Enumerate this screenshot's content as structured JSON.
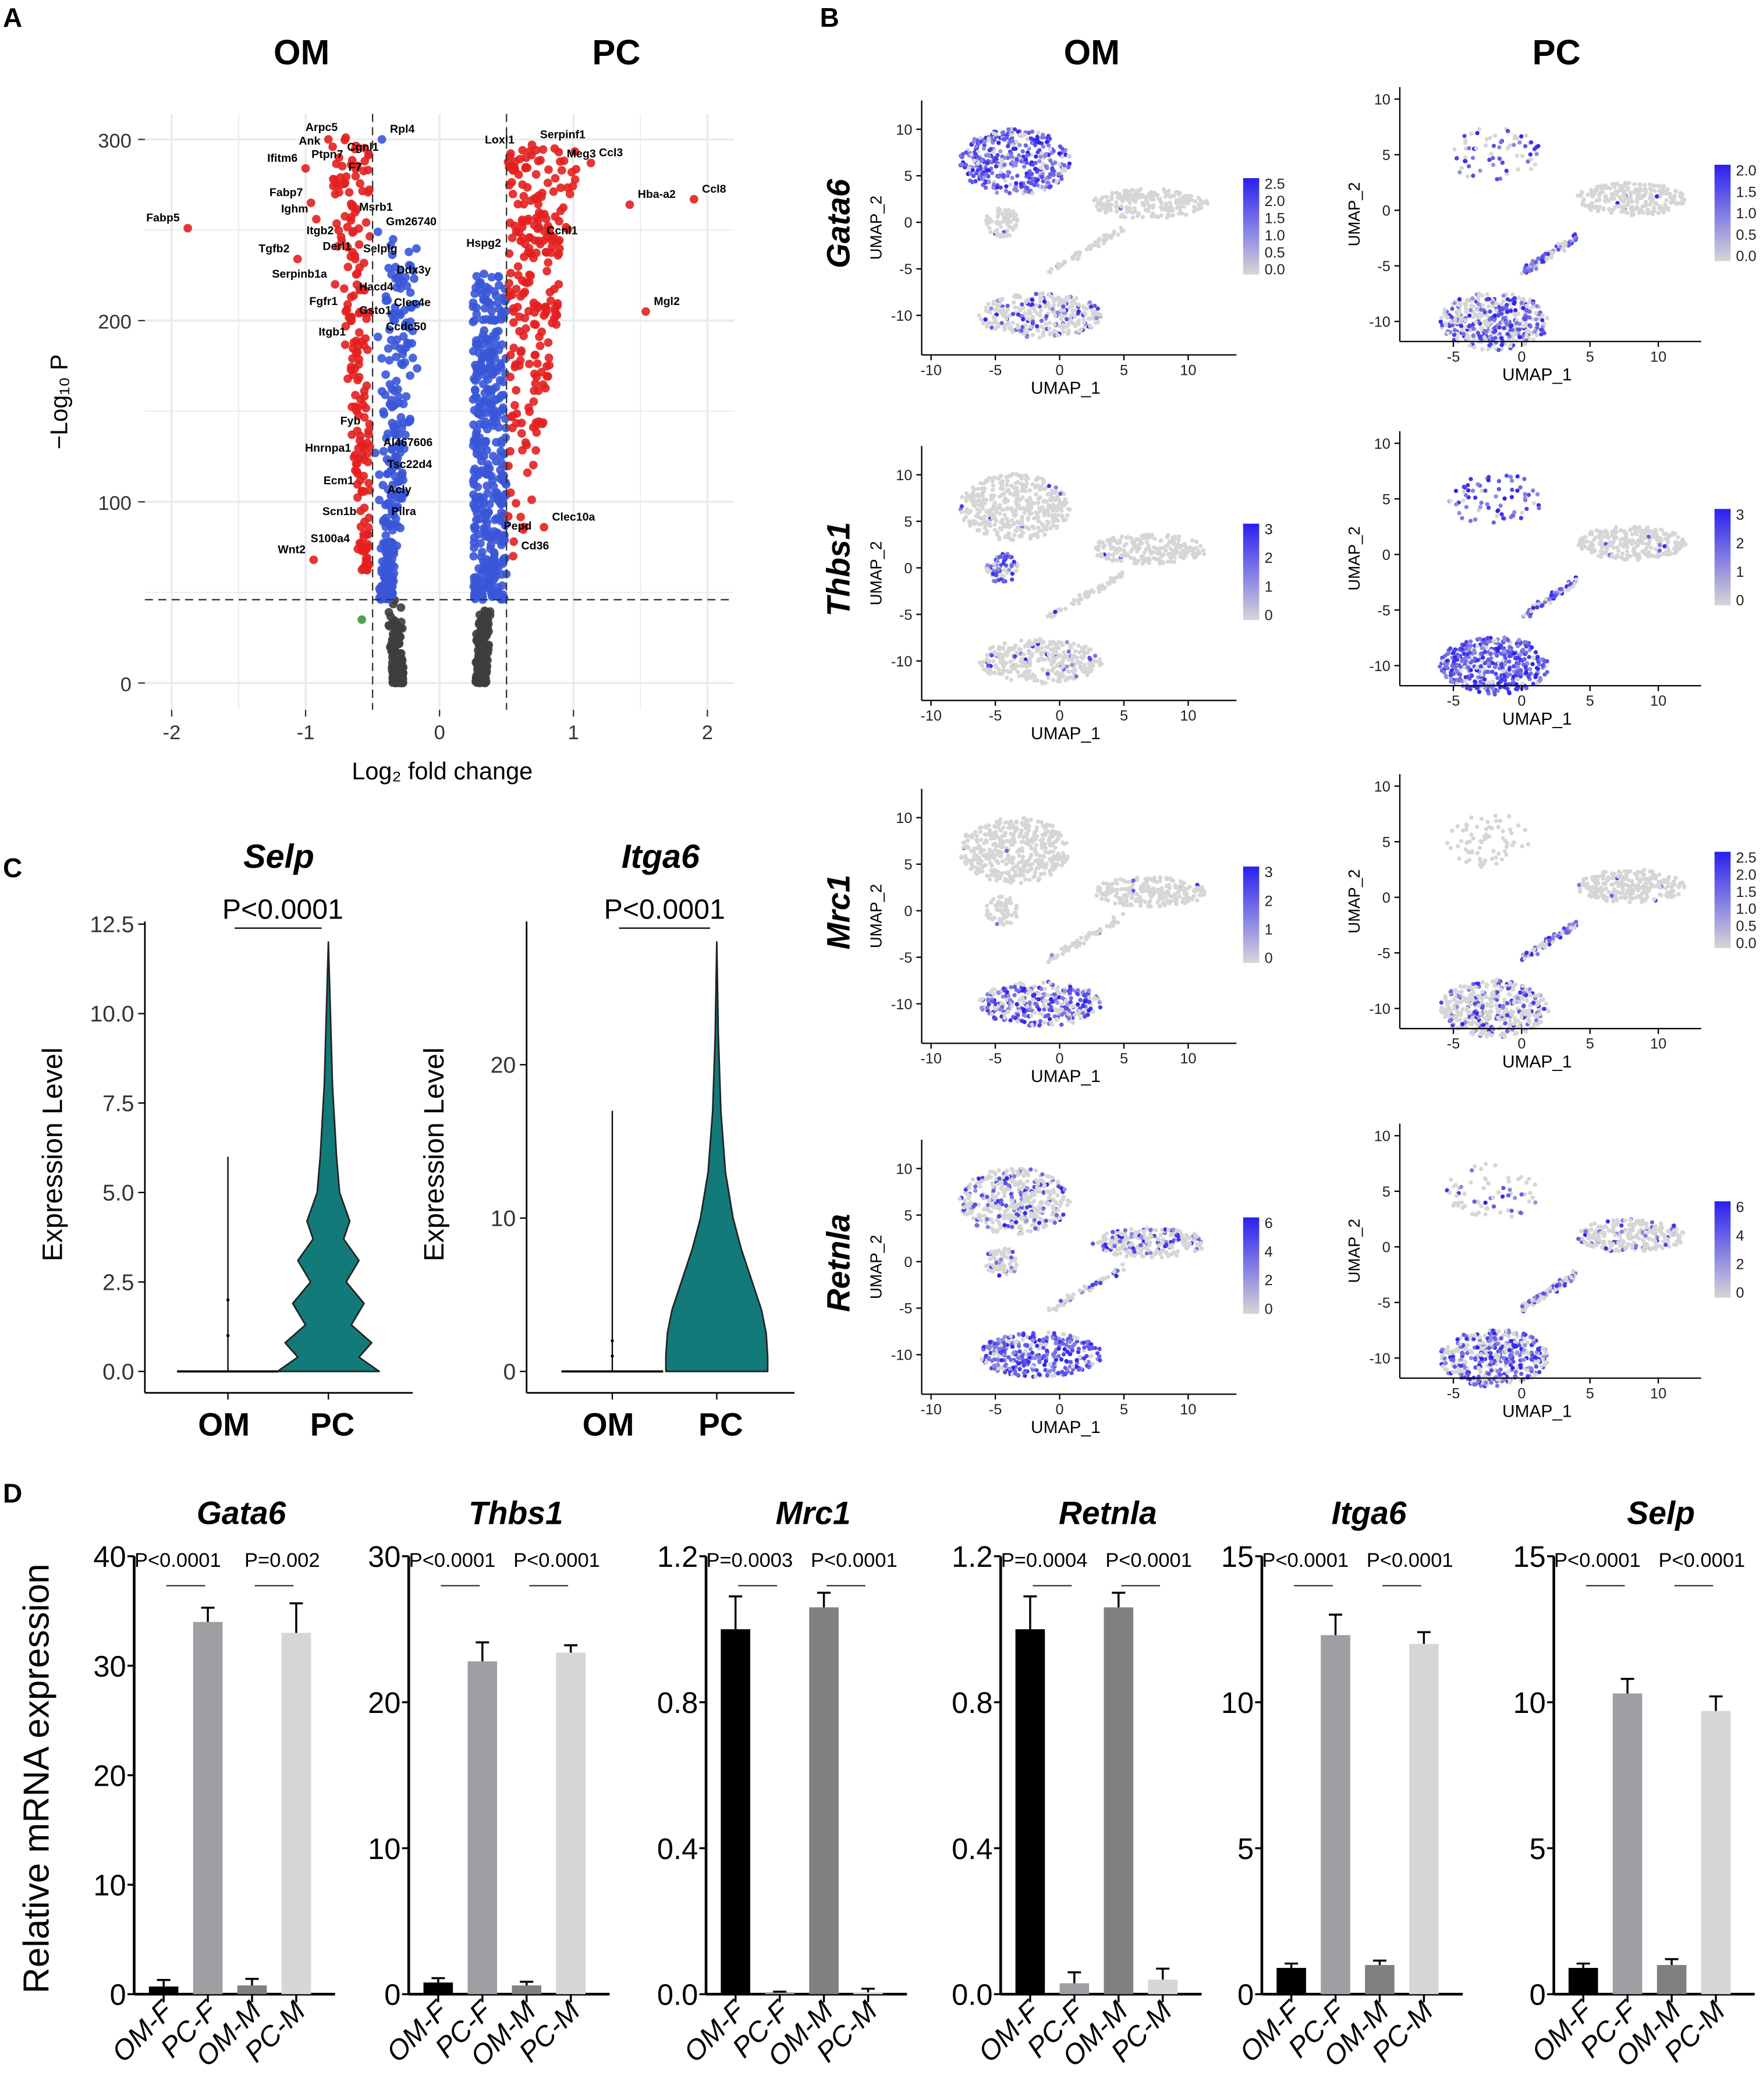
{
  "panels": {
    "a": "A",
    "b": "B",
    "c": "C",
    "d": "D"
  },
  "groups": {
    "om": "OM",
    "pc": "PC"
  },
  "colors": {
    "up": "#e3201f",
    "ns_fc": "#3a56d8",
    "ns": "#3d3d3d",
    "other": "#3a9a3a",
    "violin": "#137a7a",
    "umap_low": "#d6d6d6",
    "umap_high": "#2a1ff0"
  },
  "chart_data": [
    {
      "id": "volcano",
      "type": "scatter",
      "title": "",
      "xlabel": "Log₂ fold change",
      "ylabel": "−Log₁₀ P",
      "xlim": [
        -2.2,
        2.2
      ],
      "ylim": [
        -15,
        315
      ],
      "xticks": [
        -2,
        -1,
        0,
        1,
        2
      ],
      "yticks": [
        0,
        100,
        200,
        300
      ],
      "fc_cutoff": 0.5,
      "p_cutoff": 46,
      "grid": true,
      "labeled_points": [
        {
          "gene": "Arpc5",
          "x": -0.7,
          "y": 301,
          "c": "up"
        },
        {
          "gene": "Ank",
          "x": -0.83,
          "y": 300,
          "c": "up"
        },
        {
          "gene": "Rpl4",
          "x": -0.43,
          "y": 300,
          "c": "ns_fc"
        },
        {
          "gene": "Cgnl1",
          "x": -0.75,
          "y": 290,
          "c": "up"
        },
        {
          "gene": "Ptpn7",
          "x": -0.66,
          "y": 286,
          "c": "up"
        },
        {
          "gene": "Ifitm6",
          "x": -1.0,
          "y": 284,
          "c": "up"
        },
        {
          "gene": "F7",
          "x": -0.74,
          "y": 279,
          "c": "up"
        },
        {
          "gene": "Fabp7",
          "x": -0.96,
          "y": 265,
          "c": "up"
        },
        {
          "gene": "Ighm",
          "x": -0.92,
          "y": 256,
          "c": "up"
        },
        {
          "gene": "Msrb1",
          "x": -0.66,
          "y": 257,
          "c": "up"
        },
        {
          "gene": "Fabp5",
          "x": -1.88,
          "y": 251,
          "c": "up"
        },
        {
          "gene": "Gm26740",
          "x": -0.46,
          "y": 249,
          "c": "ns_fc"
        },
        {
          "gene": "Itgb2",
          "x": -0.73,
          "y": 244,
          "c": "up"
        },
        {
          "gene": "Derl1",
          "x": -0.6,
          "y": 242,
          "c": "up"
        },
        {
          "gene": "Tgfb2",
          "x": -1.06,
          "y": 234,
          "c": "up"
        },
        {
          "gene": "Selplg",
          "x": -0.63,
          "y": 234,
          "c": "up"
        },
        {
          "gene": "Ddx3y",
          "x": -0.38,
          "y": 229,
          "c": "ns_fc"
        },
        {
          "gene": "Serpinb1a",
          "x": -0.78,
          "y": 220,
          "c": "up"
        },
        {
          "gene": "Hacd4",
          "x": -0.66,
          "y": 213,
          "c": "up"
        },
        {
          "gene": "Clec4e",
          "x": -0.4,
          "y": 211,
          "c": "ns_fc"
        },
        {
          "gene": "Fgfr1",
          "x": -0.7,
          "y": 205,
          "c": "up"
        },
        {
          "gene": "Gsto1",
          "x": -0.66,
          "y": 200,
          "c": "up"
        },
        {
          "gene": "Ccdc50",
          "x": -0.46,
          "y": 191,
          "c": "ns_fc"
        },
        {
          "gene": "Itgb1",
          "x": -0.64,
          "y": 188,
          "c": "up"
        },
        {
          "gene": "Fyb",
          "x": -0.53,
          "y": 139,
          "c": "up"
        },
        {
          "gene": "AI467606",
          "x": -0.48,
          "y": 127,
          "c": "ns_fc"
        },
        {
          "gene": "Hnrnpa1",
          "x": -0.6,
          "y": 124,
          "c": "up"
        },
        {
          "gene": "Tsc22d4",
          "x": -0.45,
          "y": 115,
          "c": "ns_fc"
        },
        {
          "gene": "Ecm1",
          "x": -0.58,
          "y": 106,
          "c": "up"
        },
        {
          "gene": "Acly",
          "x": -0.45,
          "y": 101,
          "c": "ns_fc"
        },
        {
          "gene": "Scn1b",
          "x": -0.56,
          "y": 89,
          "c": "up"
        },
        {
          "gene": "Pilra",
          "x": -0.42,
          "y": 89,
          "c": "ns_fc"
        },
        {
          "gene": "S100a4",
          "x": -0.61,
          "y": 74,
          "c": "up"
        },
        {
          "gene": "Wnt2",
          "x": -0.94,
          "y": 68,
          "c": "up"
        },
        {
          "gene": "Serpinf1",
          "x": 0.69,
          "y": 297,
          "c": "up"
        },
        {
          "gene": "Loxl1",
          "x": 0.62,
          "y": 294,
          "c": "up"
        },
        {
          "gene": "Meg3",
          "x": 0.89,
          "y": 293,
          "c": "up"
        },
        {
          "gene": "Ccl3",
          "x": 1.13,
          "y": 287,
          "c": "up"
        },
        {
          "gene": "Hba-a2",
          "x": 1.42,
          "y": 264,
          "c": "up"
        },
        {
          "gene": "Ccl8",
          "x": 1.9,
          "y": 267,
          "c": "up"
        },
        {
          "gene": "Ccnl1",
          "x": 0.74,
          "y": 244,
          "c": "up"
        },
        {
          "gene": "Hspg2",
          "x": 0.52,
          "y": 237,
          "c": "up"
        },
        {
          "gene": "Mgl2",
          "x": 1.54,
          "y": 205,
          "c": "up"
        },
        {
          "gene": "Clec10a",
          "x": 0.78,
          "y": 86,
          "c": "up"
        },
        {
          "gene": "Pepd",
          "x": 0.42,
          "y": 81,
          "c": "ns_fc"
        },
        {
          "gene": "Cd36",
          "x": 0.55,
          "y": 70,
          "c": "up"
        }
      ]
    },
    {
      "id": "umap",
      "type": "scatter",
      "xlabel": "UMAP_1",
      "ylabel": "UMAP_2",
      "om_xticks": [
        -10,
        -5,
        0,
        5,
        10
      ],
      "pc_xticks": [
        -5,
        0,
        5,
        10
      ],
      "yticks": [
        10,
        5,
        0,
        -5,
        -10
      ],
      "rows": [
        {
          "gene": "Gata6",
          "om_scale": [
            "2.5",
            "2.0",
            "1.5",
            "1.0",
            "0.5",
            "0.0"
          ],
          "pc_scale": [
            "2.0",
            "1.5",
            "1.0",
            "0.5",
            "0.0"
          ]
        },
        {
          "gene": "Thbs1",
          "om_scale": [
            "3",
            "2",
            "1",
            "0"
          ],
          "pc_scale": [
            "3",
            "2",
            "1",
            "0"
          ]
        },
        {
          "gene": "Mrc1",
          "om_scale": [
            "3",
            "2",
            "1",
            "0"
          ],
          "pc_scale": [
            "2.5",
            "2.0",
            "1.5",
            "1.0",
            "0.5",
            "0.0"
          ]
        },
        {
          "gene": "Retnla",
          "om_scale": [
            "6",
            "4",
            "2",
            "0"
          ],
          "pc_scale": [
            "6",
            "4",
            "2",
            "0"
          ]
        }
      ]
    },
    {
      "id": "violin",
      "type": "violin",
      "ylabel": "Expression Level",
      "categories": [
        "OM",
        "PC"
      ],
      "plots": [
        {
          "gene": "Selp",
          "p": "P<0.0001",
          "ylim": [
            0,
            12.5
          ],
          "yticks": [
            "0.0",
            "2.5",
            "5.0",
            "7.5",
            "10.0",
            "12.5"
          ],
          "ytick_values": [
            0,
            2.5,
            5,
            7.5,
            10,
            12.5
          ],
          "om_max": 6,
          "om_points": [
            1,
            2
          ],
          "pc_density": [
            [
              0,
              1.0
            ],
            [
              0.4,
              0.6
            ],
            [
              0.8,
              0.85
            ],
            [
              1.3,
              0.45
            ],
            [
              1.9,
              0.7
            ],
            [
              2.5,
              0.35
            ],
            [
              3.1,
              0.6
            ],
            [
              3.7,
              0.3
            ],
            [
              4.2,
              0.42
            ],
            [
              5,
              0.22
            ],
            [
              6,
              0.16
            ],
            [
              7,
              0.12
            ],
            [
              8,
              0.08
            ],
            [
              10,
              0.04
            ],
            [
              12,
              0
            ]
          ]
        },
        {
          "gene": "Itga6",
          "p": "P<0.0001",
          "ylim": [
            0,
            29
          ],
          "yticks": [
            "0",
            "10",
            "20"
          ],
          "ytick_values": [
            0,
            10,
            20
          ],
          "om_max": 17,
          "om_points": [
            1,
            2
          ],
          "pc_density": [
            [
              0,
              1.0
            ],
            [
              1,
              1.0
            ],
            [
              2.5,
              0.97
            ],
            [
              4,
              0.88
            ],
            [
              6,
              0.68
            ],
            [
              8,
              0.48
            ],
            [
              10,
              0.32
            ],
            [
              13,
              0.17
            ],
            [
              17,
              0.08
            ],
            [
              22,
              0.03
            ],
            [
              28,
              0
            ]
          ]
        }
      ]
    },
    {
      "id": "qpcr",
      "type": "bar",
      "ylabel": "Relative mRNA expression",
      "categories": [
        "OM-F",
        "PC-F",
        "OM-M",
        "PC-M"
      ],
      "bar_colors": [
        "#000000",
        "#9e9ea3",
        "#808080",
        "#d6d6d6"
      ],
      "plots": [
        {
          "gene": "Gata6",
          "ymax": 40,
          "yticks": [
            "0",
            "10",
            "20",
            "30",
            "40"
          ],
          "ytick_values": [
            0,
            10,
            20,
            30,
            40
          ],
          "values": [
            0.7,
            34,
            0.8,
            33
          ],
          "errors": [
            0.6,
            1.3,
            0.6,
            2.7
          ],
          "p": [
            "P<0.0001",
            "P=0.002"
          ]
        },
        {
          "gene": "Thbs1",
          "ymax": 30,
          "yticks": [
            "0",
            "10",
            "20",
            "30"
          ],
          "ytick_values": [
            0,
            10,
            20,
            30
          ],
          "values": [
            0.8,
            22.8,
            0.6,
            23.4
          ],
          "errors": [
            0.3,
            1.3,
            0.25,
            0.5
          ],
          "p": [
            "P<0.0001",
            "P<0.0001"
          ]
        },
        {
          "gene": "Mrc1",
          "ymax": 1.2,
          "yticks": [
            "0.0",
            "0.4",
            "0.8",
            "1.2"
          ],
          "ytick_values": [
            0,
            0.4,
            0.8,
            1.2
          ],
          "values": [
            1.0,
            0.005,
            1.06,
            0.005
          ],
          "errors": [
            0.09,
            0.002,
            0.04,
            0.01
          ],
          "p": [
            "P=0.0003",
            "P<0.0001"
          ]
        },
        {
          "gene": "Retnla",
          "ymax": 1.2,
          "yticks": [
            "0.0",
            "0.4",
            "0.8",
            "1.2"
          ],
          "ytick_values": [
            0,
            0.4,
            0.8,
            1.2
          ],
          "values": [
            1.0,
            0.03,
            1.06,
            0.04
          ],
          "errors": [
            0.09,
            0.03,
            0.04,
            0.03
          ],
          "p": [
            "P=0.0004",
            "P<0.0001"
          ]
        },
        {
          "gene": "Itga6",
          "ymax": 15,
          "yticks": [
            "0",
            "5",
            "10",
            "15"
          ],
          "ytick_values": [
            0,
            5,
            10,
            15
          ],
          "values": [
            0.9,
            12.3,
            1.0,
            12.0
          ],
          "errors": [
            0.15,
            0.7,
            0.15,
            0.4
          ],
          "p": [
            "P<0.0001",
            "P<0.0001"
          ]
        },
        {
          "gene": "Selp",
          "ymax": 15,
          "yticks": [
            "0",
            "5",
            "10",
            "15"
          ],
          "ytick_values": [
            0,
            5,
            10,
            15
          ],
          "values": [
            0.9,
            10.3,
            1.0,
            9.7
          ],
          "errors": [
            0.15,
            0.5,
            0.2,
            0.5
          ],
          "p": [
            "P<0.0001",
            "P<0.0001"
          ]
        }
      ]
    }
  ]
}
